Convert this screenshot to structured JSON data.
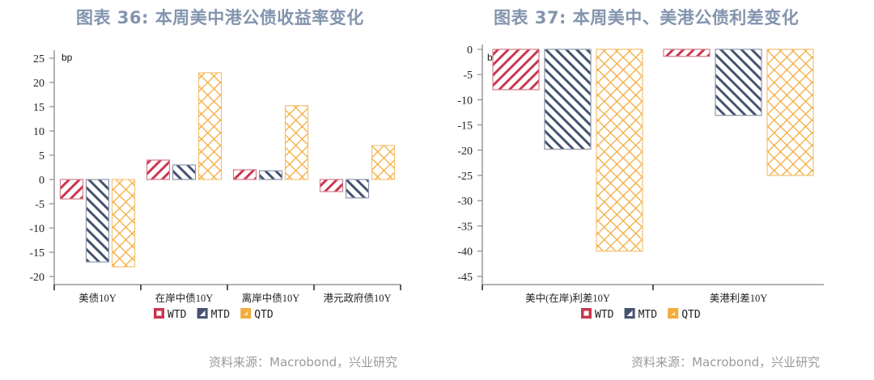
{
  "colors": {
    "wtd": "#c9374f",
    "mtd": "#46536f",
    "qtd": "#f2ad3e",
    "title": "#8394ad",
    "source": "#9a9a9a"
  },
  "charts": [
    {
      "title": "图表 36: 本周美中港公债收益率变化",
      "unit": "bp",
      "source": "资料来源：Macrobond，兴业研究",
      "legend": [
        "WTD",
        "MTD",
        "QTD"
      ],
      "yticks": [
        "25",
        "20",
        "15",
        "10",
        "5",
        "0",
        "-5",
        "-10",
        "-15",
        "-20"
      ],
      "categories": [
        "美债10Y",
        "在岸中债10Y",
        "离岸中债10Y",
        "港元政府债10Y"
      ]
    },
    {
      "title": "图表 37: 本周美中、美港公债利差变化",
      "unit": "bp",
      "source": "资料来源：Macrobond，兴业研究",
      "legend": [
        "WTD",
        "MTD",
        "QTD"
      ],
      "yticks": [
        "0",
        "-5",
        "-10",
        "-15",
        "-20",
        "-25",
        "-30",
        "-35",
        "-40",
        "-45"
      ],
      "categories": [
        "美中(在岸)利差10Y",
        "美港利差10Y"
      ]
    }
  ],
  "chart_data": [
    {
      "type": "bar",
      "title": "图表 36: 本周美中港公债收益率变化",
      "ylabel": "bp",
      "xlabel": "",
      "ylim": [
        -22,
        27
      ],
      "grid": false,
      "legend_position": "bottom",
      "categories": [
        "美债10Y",
        "在岸中债10Y",
        "离岸中债10Y",
        "港元政府债10Y"
      ],
      "series": [
        {
          "name": "WTD",
          "values": [
            -4,
            4,
            2,
            -2.5
          ]
        },
        {
          "name": "MTD",
          "values": [
            -17,
            3,
            1.8,
            -3.8
          ]
        },
        {
          "name": "QTD",
          "values": [
            -18,
            22,
            15.2,
            7
          ]
        }
      ]
    },
    {
      "type": "bar",
      "title": "图表 37: 本周美中、美港公债利差变化",
      "ylabel": "bp",
      "xlabel": "",
      "ylim": [
        -46.5,
        0
      ],
      "grid": false,
      "legend_position": "bottom",
      "categories": [
        "美中(在岸)利差10Y",
        "美港利差10Y"
      ],
      "series": [
        {
          "name": "WTD",
          "values": [
            -8,
            -1.4
          ]
        },
        {
          "name": "MTD",
          "values": [
            -19.8,
            -13.1
          ]
        },
        {
          "name": "QTD",
          "values": [
            -40,
            -25
          ]
        }
      ]
    }
  ]
}
